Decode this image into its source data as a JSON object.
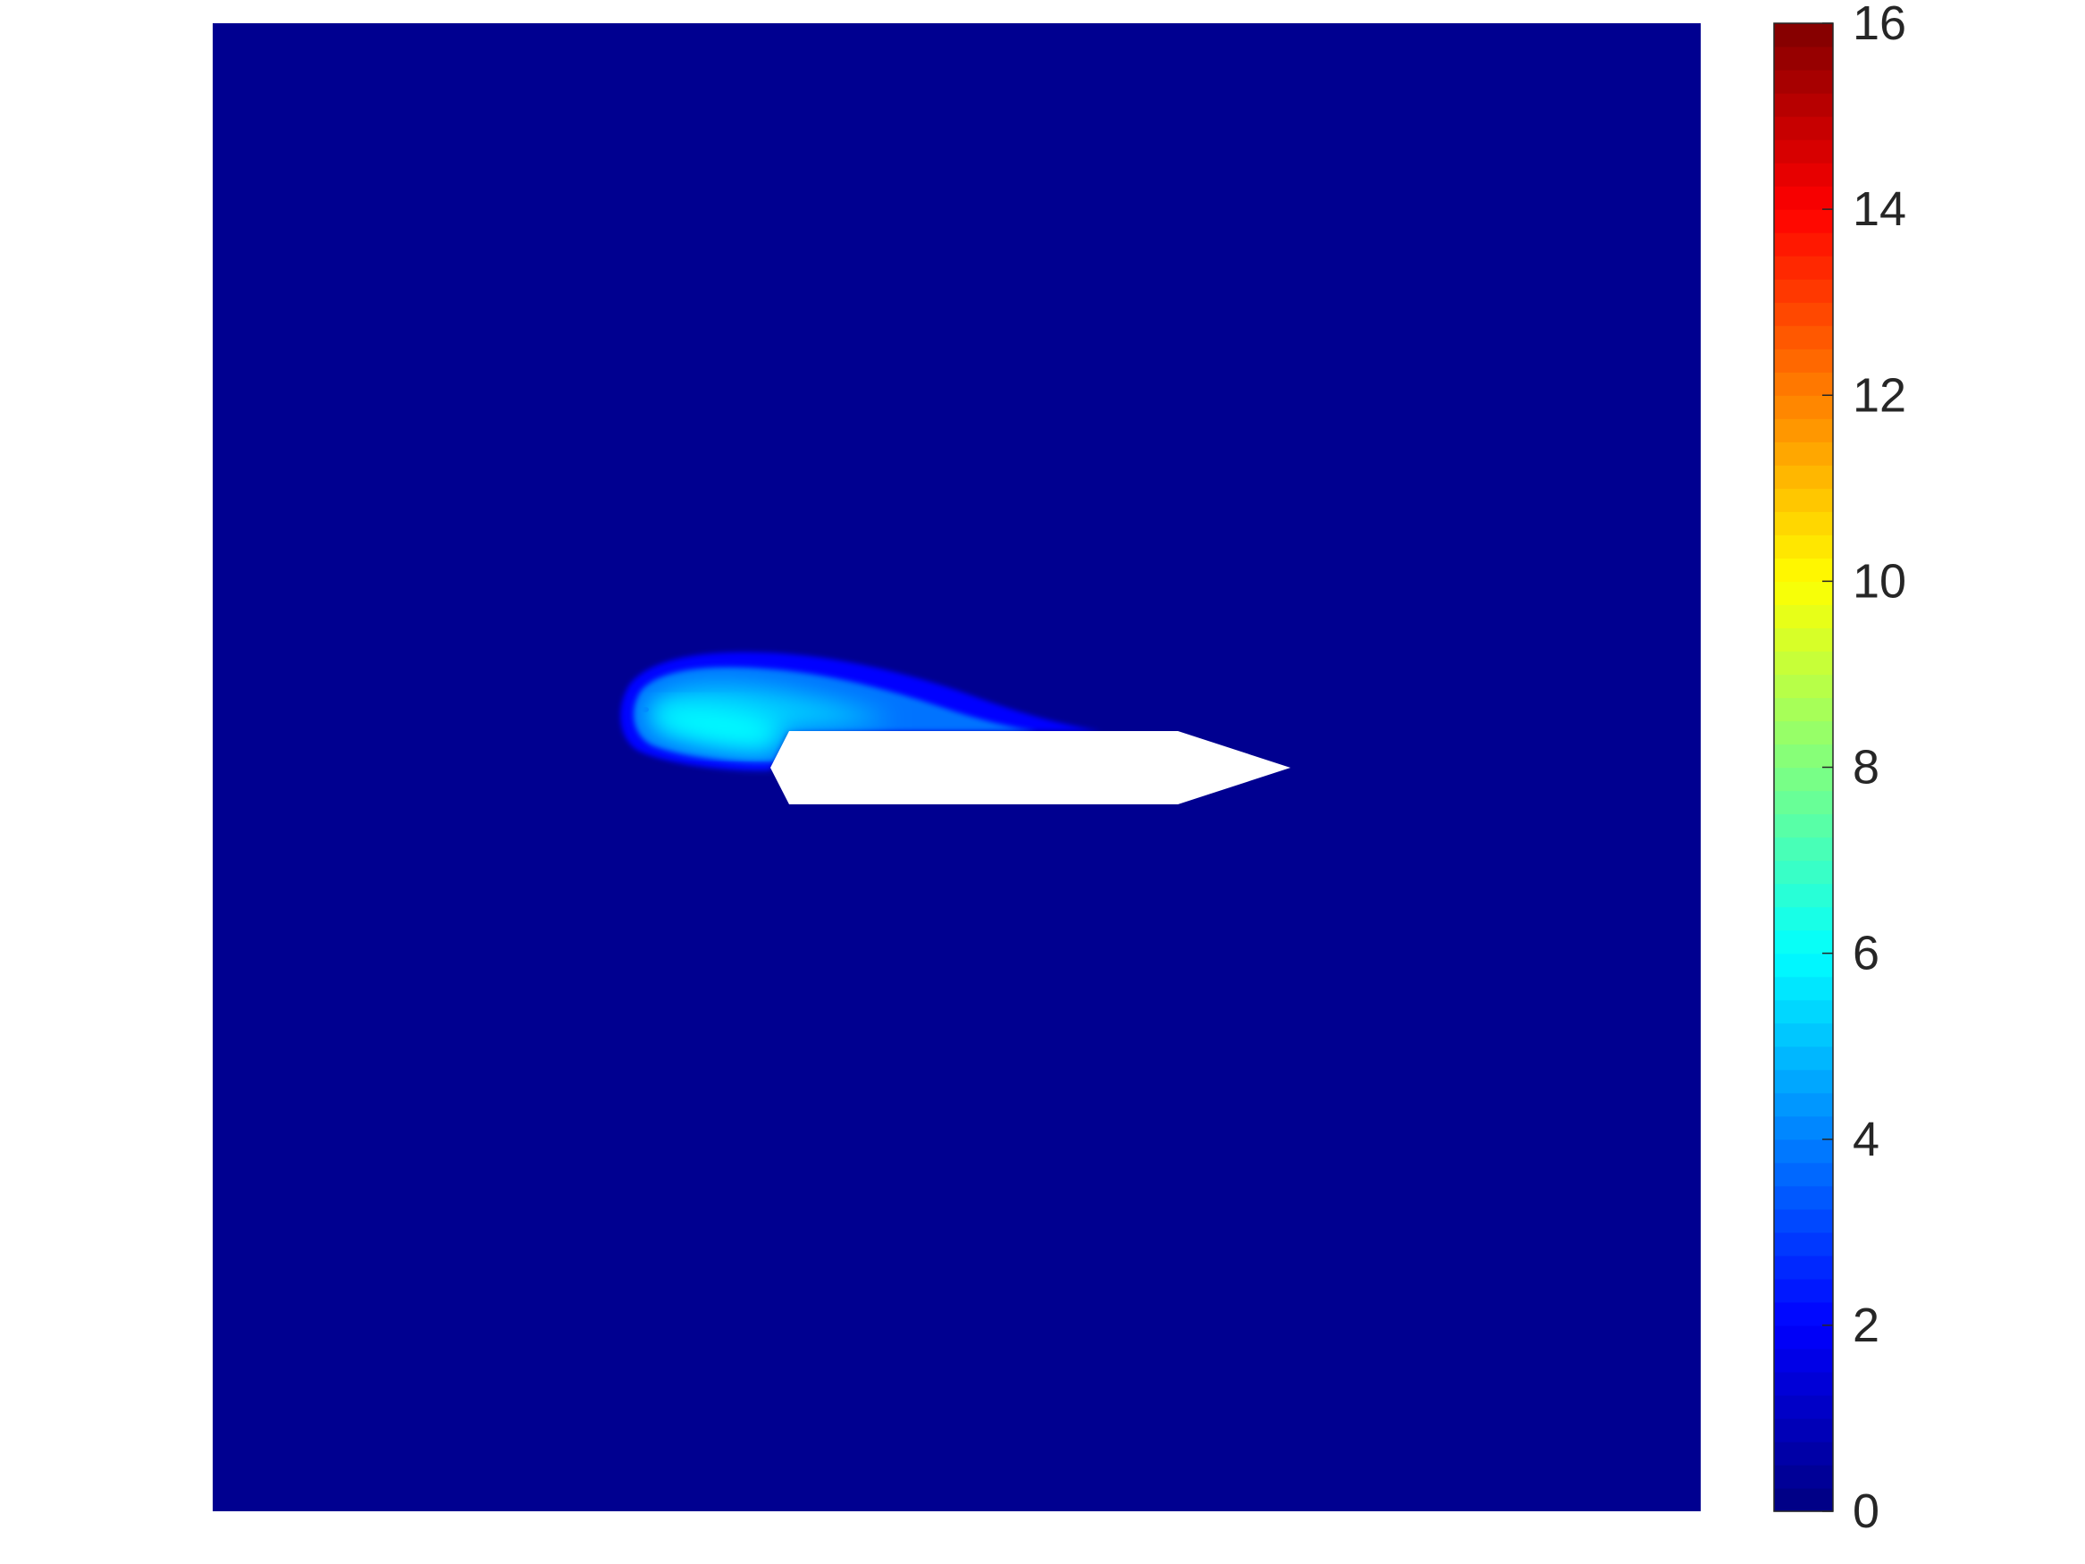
{
  "chart_data": {
    "type": "heatmap",
    "title": "",
    "xlabel": "",
    "ylabel": "",
    "colormap": "jet",
    "background_value": 0,
    "colorbar": {
      "min": 0,
      "max": 16,
      "ticks": [
        0,
        2,
        4,
        6,
        8,
        10,
        12,
        14,
        16
      ],
      "tick_labels": [
        "0",
        "2",
        "4",
        "6",
        "8",
        "10",
        "12",
        "14",
        "16"
      ],
      "levels": 64
    },
    "features": {
      "plume_peak_value": 6,
      "plume_edge_value": 2,
      "obstacle_fill": "#ffffff"
    },
    "colors": {
      "background_field": "#000090",
      "axes_frame": "#262626"
    }
  }
}
